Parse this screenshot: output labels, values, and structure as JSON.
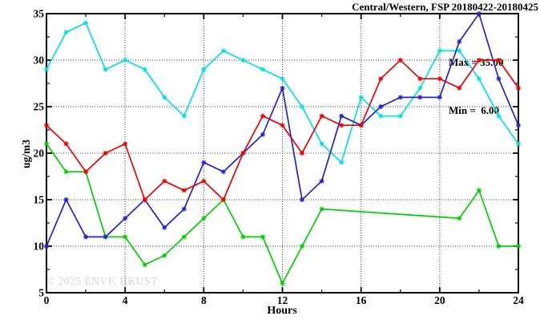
{
  "header": {
    "title": "Central/Western, FSP 20180422-20180425"
  },
  "chart_data": {
    "type": "line",
    "title": "Central/Western, FSP 20180422-20180425",
    "xlabel": "Hours",
    "ylabel": "ug/m3",
    "xlim": [
      0,
      24
    ],
    "ylim": [
      5,
      35
    ],
    "x_major_ticks": [
      0,
      4,
      8,
      12,
      16,
      20,
      24
    ],
    "y_major_ticks": [
      5,
      10,
      15,
      20,
      25,
      30,
      35
    ],
    "x_minor_ticks": [
      2,
      6,
      10,
      14,
      18,
      22
    ],
    "y_minor_ticks": [
      7.5,
      12.5,
      17.5,
      22.5,
      27.5,
      32.5
    ],
    "grid": true,
    "grid_style": "dotted",
    "grid_color": "#444444",
    "axis_color": "#000000",
    "legend_position": "none",
    "annotations": {
      "max_label": "Max = 35.00",
      "min_label": "Min =  6.00",
      "max_value": 35.0,
      "min_value": 6.0
    },
    "watermark": "© 2025 ENVF, HKUST",
    "watermark_color": "#d4d4d4",
    "marker": "asterisk",
    "series": [
      {
        "name": "cyan-series",
        "color": "#00e2e2",
        "x": [
          0,
          1,
          2,
          3,
          4,
          5,
          6,
          7,
          8,
          9,
          10,
          11,
          12,
          13,
          14,
          15,
          16,
          17,
          18,
          19,
          20,
          21,
          22,
          23,
          24
        ],
        "values": [
          29,
          33,
          34,
          29,
          30,
          29,
          26,
          24,
          29,
          31,
          30,
          29,
          28,
          25,
          21,
          19,
          26,
          24,
          24,
          27,
          31,
          31,
          28,
          24,
          21
        ]
      },
      {
        "name": "green-series",
        "color": "#00d000",
        "x": [
          0,
          1,
          2,
          3,
          4,
          5,
          6,
          7,
          8,
          9,
          10,
          11,
          12,
          13,
          14,
          21,
          22,
          23,
          24
        ],
        "values": [
          21,
          18,
          18,
          11,
          11,
          8,
          9,
          11,
          13,
          15,
          11,
          11,
          6,
          10,
          14,
          13,
          16,
          10,
          10
        ]
      },
      {
        "name": "blue-series",
        "color": "#2222d2",
        "x": [
          0,
          1,
          2,
          3,
          4,
          5,
          6,
          7,
          8,
          9,
          10,
          11,
          12,
          13,
          14,
          15,
          16,
          17,
          18,
          19,
          20,
          21,
          22,
          23,
          24
        ],
        "values": [
          10,
          15,
          11,
          11,
          13,
          15,
          12,
          14,
          19,
          18,
          20,
          22,
          27,
          15,
          17,
          24,
          23,
          25,
          26,
          26,
          26,
          32,
          35,
          28,
          23
        ]
      },
      {
        "name": "red-series",
        "color": "#ee0000",
        "x": [
          0,
          1,
          2,
          3,
          4,
          5,
          6,
          7,
          8,
          9,
          10,
          11,
          12,
          13,
          14,
          15,
          16,
          17,
          18,
          19,
          20,
          21,
          22,
          23,
          24
        ],
        "values": [
          23,
          21,
          18,
          20,
          21,
          15,
          17,
          16,
          17,
          15,
          20,
          24,
          23,
          20,
          24,
          23,
          23,
          28,
          30,
          28,
          28,
          27,
          30,
          30,
          27
        ]
      }
    ]
  }
}
